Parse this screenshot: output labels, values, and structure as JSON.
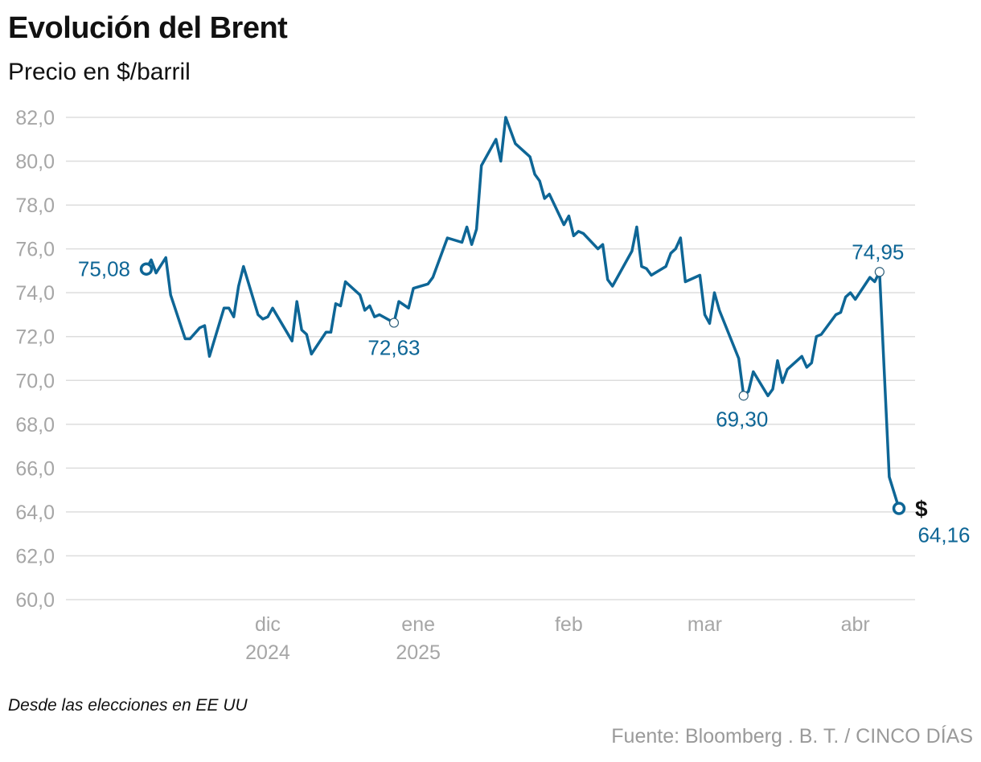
{
  "title": "Evolución del Brent",
  "subtitle": "Precio en $/barril",
  "note": "Desde las elecciones en EE UU",
  "source": "Fuente: Bloomberg . B. T. / CINCO DÍAS",
  "colors": {
    "line": "#0e6696",
    "grid": "#dddddd",
    "tick_text": "#a6a6a6"
  },
  "chart_data": {
    "type": "line",
    "title": "Evolución del Brent",
    "subtitle": "Precio en $/barril",
    "ylim": [
      60,
      82
    ],
    "y_ticks": [
      "82,0",
      "80,0",
      "78,0",
      "76,0",
      "74,0",
      "72,0",
      "70,0",
      "68,0",
      "66,0",
      "64,0",
      "62,0",
      "60,0"
    ],
    "x_ticks": [
      {
        "date": "2024-12-01",
        "label": "dic",
        "sub": "2024"
      },
      {
        "date": "2025-01-01",
        "label": "ene",
        "sub": "2025"
      },
      {
        "date": "2025-02-01",
        "label": "feb",
        "sub": ""
      },
      {
        "date": "2025-03-01",
        "label": "mar",
        "sub": ""
      },
      {
        "date": "2025-04-01",
        "label": "abr",
        "sub": ""
      }
    ],
    "x_range": [
      "2024-11-06",
      "2025-04-23"
    ],
    "grid": "horizontal",
    "series": [
      {
        "points": [
          [
            "2024-11-06",
            75.08
          ],
          [
            "2024-11-07",
            75.5
          ],
          [
            "2024-11-08",
            74.9
          ],
          [
            "2024-11-10",
            75.6
          ],
          [
            "2024-11-11",
            73.9
          ],
          [
            "2024-11-14",
            71.9
          ],
          [
            "2024-11-15",
            71.9
          ],
          [
            "2024-11-17",
            72.4
          ],
          [
            "2024-11-18",
            72.5
          ],
          [
            "2024-11-19",
            71.1
          ],
          [
            "2024-11-22",
            73.3
          ],
          [
            "2024-11-23",
            73.3
          ],
          [
            "2024-11-24",
            72.9
          ],
          [
            "2024-11-25",
            74.3
          ],
          [
            "2024-11-26",
            75.2
          ],
          [
            "2024-11-29",
            73.0
          ],
          [
            "2024-11-30",
            72.8
          ],
          [
            "2024-12-01",
            72.9
          ],
          [
            "2024-12-02",
            73.3
          ],
          [
            "2024-12-06",
            71.8
          ],
          [
            "2024-12-07",
            73.6
          ],
          [
            "2024-12-08",
            72.3
          ],
          [
            "2024-12-09",
            72.1
          ],
          [
            "2024-12-10",
            71.2
          ],
          [
            "2024-12-13",
            72.2
          ],
          [
            "2024-12-14",
            72.2
          ],
          [
            "2024-12-15",
            73.5
          ],
          [
            "2024-12-16",
            73.4
          ],
          [
            "2024-12-17",
            74.5
          ],
          [
            "2024-12-20",
            73.9
          ],
          [
            "2024-12-21",
            73.2
          ],
          [
            "2024-12-22",
            73.4
          ],
          [
            "2024-12-23",
            72.9
          ],
          [
            "2024-12-24",
            73.0
          ],
          [
            "2024-12-27",
            72.63
          ],
          [
            "2024-12-28",
            73.6
          ],
          [
            "2024-12-30",
            73.3
          ],
          [
            "2024-12-31",
            74.2
          ],
          [
            "2025-01-03",
            74.4
          ],
          [
            "2025-01-04",
            74.7
          ],
          [
            "2025-01-07",
            76.5
          ],
          [
            "2025-01-10",
            76.3
          ],
          [
            "2025-01-11",
            77.0
          ],
          [
            "2025-01-12",
            76.2
          ],
          [
            "2025-01-13",
            76.9
          ],
          [
            "2025-01-14",
            79.8
          ],
          [
            "2025-01-17",
            81.0
          ],
          [
            "2025-01-18",
            80.0
          ],
          [
            "2025-01-19",
            82.0
          ],
          [
            "2025-01-21",
            80.8
          ],
          [
            "2025-01-24",
            80.2
          ],
          [
            "2025-01-25",
            79.4
          ],
          [
            "2025-01-26",
            79.1
          ],
          [
            "2025-01-27",
            78.3
          ],
          [
            "2025-01-28",
            78.5
          ],
          [
            "2025-01-31",
            77.1
          ],
          [
            "2025-02-01",
            77.5
          ],
          [
            "2025-02-02",
            76.6
          ],
          [
            "2025-02-03",
            76.8
          ],
          [
            "2025-02-04",
            76.7
          ],
          [
            "2025-02-07",
            76.0
          ],
          [
            "2025-02-08",
            76.2
          ],
          [
            "2025-02-09",
            74.6
          ],
          [
            "2025-02-10",
            74.3
          ],
          [
            "2025-02-14",
            75.9
          ],
          [
            "2025-02-15",
            77.0
          ],
          [
            "2025-02-16",
            75.2
          ],
          [
            "2025-02-17",
            75.1
          ],
          [
            "2025-02-18",
            74.8
          ],
          [
            "2025-02-21",
            75.2
          ],
          [
            "2025-02-22",
            75.8
          ],
          [
            "2025-02-23",
            76.0
          ],
          [
            "2025-02-24",
            76.5
          ],
          [
            "2025-02-25",
            74.5
          ],
          [
            "2025-02-28",
            74.8
          ],
          [
            "2025-03-01",
            73.0
          ],
          [
            "2025-03-02",
            72.6
          ],
          [
            "2025-03-03",
            74.0
          ],
          [
            "2025-03-04",
            73.2
          ],
          [
            "2025-03-08",
            71.0
          ],
          [
            "2025-03-09",
            69.3
          ],
          [
            "2025-03-10",
            69.5
          ],
          [
            "2025-03-11",
            70.4
          ],
          [
            "2025-03-14",
            69.3
          ],
          [
            "2025-03-15",
            69.6
          ],
          [
            "2025-03-16",
            70.9
          ],
          [
            "2025-03-17",
            69.9
          ],
          [
            "2025-03-18",
            70.5
          ],
          [
            "2025-03-21",
            71.1
          ],
          [
            "2025-03-22",
            70.6
          ],
          [
            "2025-03-23",
            70.8
          ],
          [
            "2025-03-24",
            72.0
          ],
          [
            "2025-03-25",
            72.1
          ],
          [
            "2025-03-28",
            73.0
          ],
          [
            "2025-03-29",
            73.1
          ],
          [
            "2025-03-30",
            73.8
          ],
          [
            "2025-03-31",
            74.0
          ],
          [
            "2025-04-01",
            73.7
          ],
          [
            "2025-04-04",
            74.7
          ],
          [
            "2025-04-05",
            74.5
          ],
          [
            "2025-04-06",
            74.95
          ],
          [
            "2025-04-08",
            65.6
          ],
          [
            "2025-04-10",
            64.16
          ]
        ]
      }
    ],
    "annotations": [
      {
        "date": "2024-11-06",
        "value": 75.08,
        "label": "75,08",
        "marker": "endpoint"
      },
      {
        "date": "2024-12-27",
        "value": 72.63,
        "label": "72,63",
        "marker": "point"
      },
      {
        "date": "2025-03-09",
        "value": 69.3,
        "label": "69,30",
        "marker": "point"
      },
      {
        "date": "2025-04-06",
        "value": 74.95,
        "label": "74,95",
        "marker": "point"
      },
      {
        "date": "2025-04-10",
        "value": 64.16,
        "label": "64,16",
        "marker": "endpoint",
        "symbol": "$"
      }
    ]
  }
}
